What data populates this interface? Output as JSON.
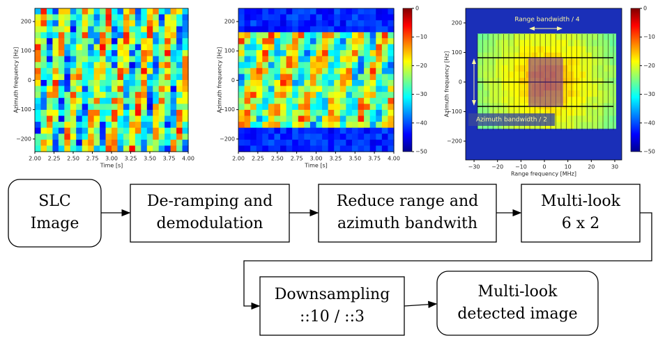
{
  "panels": [
    {
      "yticks": [
        "200",
        "100",
        "0",
        "−100",
        "−200"
      ],
      "xticks": [
        "2.00",
        "2.25",
        "2.50",
        "2.75",
        "3.00",
        "3.25",
        "3.50",
        "3.75",
        "4.00"
      ],
      "xlabel": "Time [s]",
      "ylabel": "Azimuth frequency [Hz]"
    },
    {
      "yticks": [
        "200",
        "100",
        "0",
        "−100",
        "−200"
      ],
      "xticks": [
        "2.00",
        "2.25",
        "2.50",
        "2.75",
        "3.00",
        "3.25",
        "3.50",
        "3.75",
        "4.00"
      ],
      "xlabel": "Time [s]",
      "ylabel": "Azimuth frequency [Hz]",
      "colorbar": [
        "0",
        "−10",
        "−20",
        "−30",
        "−40",
        "−50"
      ]
    },
    {
      "yticks": [
        "200",
        "100",
        "0",
        "−100",
        "−200"
      ],
      "xticks": [
        "−30",
        "−20",
        "−10",
        "0",
        "10",
        "20",
        "30"
      ],
      "xlabel": "Range frequency [MHz]",
      "ylabel": "Azimuth frequency [Hz]",
      "colorbar": [
        "0",
        "−10",
        "−20",
        "−30",
        "−40",
        "−50"
      ],
      "annotations": [
        "Range bandwidth / 4",
        "Azimuth bandwidth / 2"
      ]
    }
  ],
  "flow": {
    "nodes": [
      {
        "lines": [
          "SLC",
          "Image"
        ]
      },
      {
        "lines": [
          "De-ramping and",
          "demodulation"
        ]
      },
      {
        "lines": [
          "Reduce range and",
          "azimuth bandwith"
        ]
      },
      {
        "lines": [
          "Multi-look",
          "6 x 2"
        ]
      },
      {
        "lines": [
          "Downsampling",
          "::10 / ::3"
        ]
      },
      {
        "lines": [
          "Multi-look",
          "detected image"
        ]
      }
    ]
  }
}
